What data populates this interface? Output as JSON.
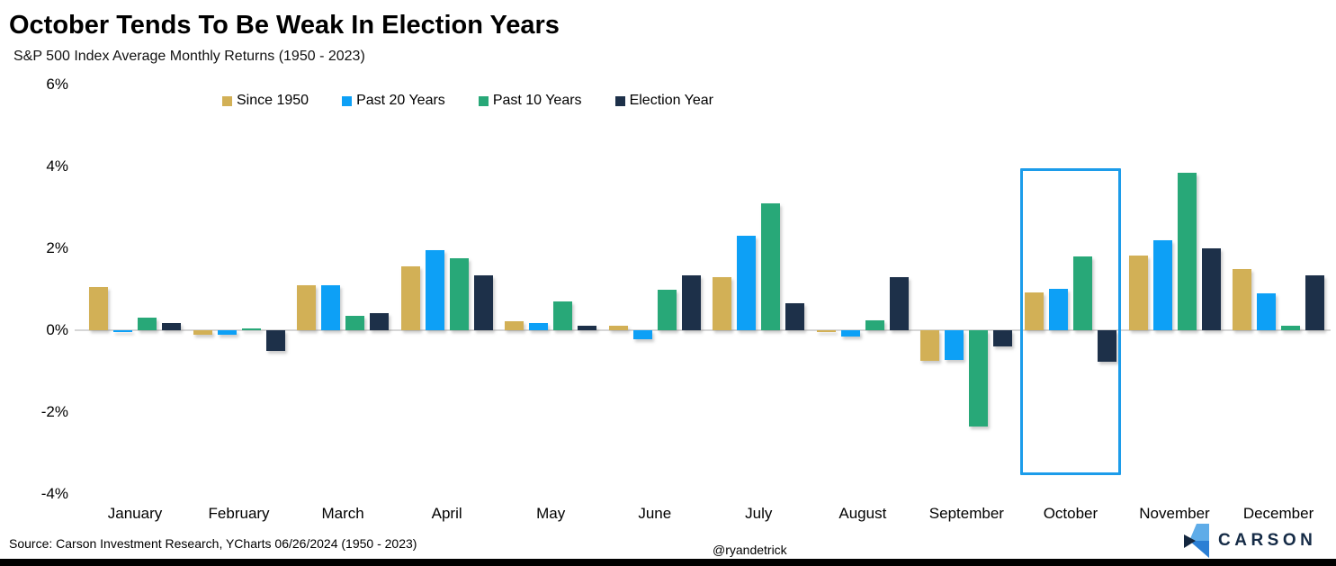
{
  "chart_data": {
    "type": "bar",
    "title": "October Tends To Be Weak In Election Years",
    "subtitle": "S&P 500 Index Average Monthly Returns (1950 - 2023)",
    "categories": [
      "January",
      "February",
      "March",
      "April",
      "May",
      "June",
      "July",
      "August",
      "September",
      "October",
      "November",
      "December"
    ],
    "series": [
      {
        "name": "Since 1950",
        "color": "#d2b056",
        "values": [
          1.05,
          -0.12,
          1.1,
          1.55,
          0.22,
          0.12,
          1.3,
          -0.05,
          -0.75,
          0.93,
          1.82,
          1.5
        ]
      },
      {
        "name": "Past 20 Years",
        "color": "#0da0f6",
        "values": [
          -0.05,
          -0.1,
          1.1,
          1.95,
          0.17,
          -0.22,
          2.3,
          -0.15,
          -0.73,
          1.02,
          2.2,
          0.9
        ]
      },
      {
        "name": "Past 10 Years",
        "color": "#28a878",
        "values": [
          0.3,
          0.05,
          0.35,
          1.75,
          0.7,
          1.0,
          3.1,
          0.25,
          -2.35,
          1.8,
          3.85,
          0.1
        ]
      },
      {
        "name": "Election Year",
        "color": "#1d3049",
        "values": [
          0.18,
          -0.5,
          0.42,
          1.35,
          0.1,
          1.33,
          0.65,
          1.3,
          -0.4,
          -0.76,
          2.0,
          1.35
        ]
      }
    ],
    "ylim": [
      -4,
      6
    ],
    "y_ticks": [
      {
        "label": "6%",
        "value": 6
      },
      {
        "label": "4%",
        "value": 4
      },
      {
        "label": "2%",
        "value": 2
      },
      {
        "label": "0%",
        "value": 0
      },
      {
        "label": "-2%",
        "value": -2
      },
      {
        "label": "-4%",
        "value": -4
      }
    ],
    "grid": false,
    "legend_position": "top",
    "highlight": {
      "month": "October",
      "color": "#1c9cea"
    }
  },
  "footer": {
    "source": "Source: Carson Investment Research, YCharts 06/26/2024 (1950 - 2023)",
    "handle": "@ryandetrick",
    "brand": "CARSON"
  }
}
